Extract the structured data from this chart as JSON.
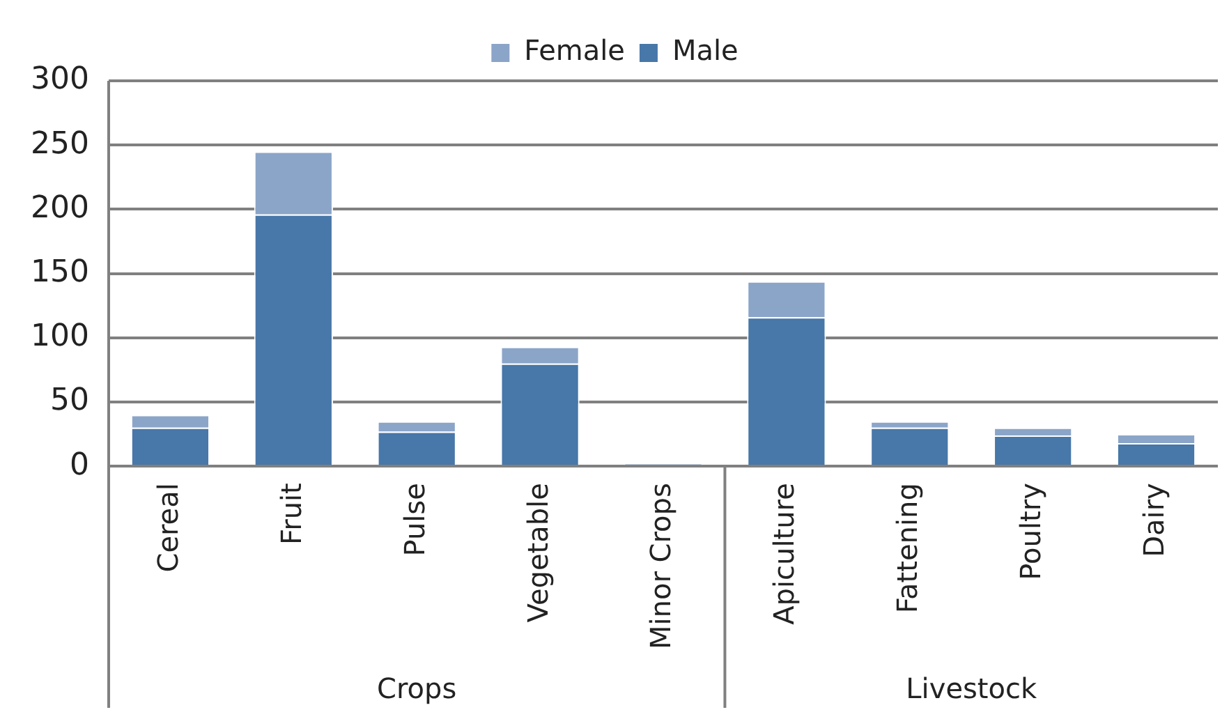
{
  "chart_data": {
    "type": "bar",
    "stacked": true,
    "categories": [
      "Cereal",
      "Fruit",
      "Pulse",
      "Vegetable",
      "Minor Crops",
      "Apiculture",
      "Fattening",
      "Poultry",
      "Dairy"
    ],
    "series": [
      {
        "name": "Male",
        "color": "#4877a9",
        "values": [
          30,
          196,
          27,
          80,
          1,
          116,
          30,
          24,
          18
        ]
      },
      {
        "name": "Female",
        "color": "#8ba5c8",
        "values": [
          10,
          49,
          8,
          13,
          1,
          28,
          5,
          6,
          7
        ]
      }
    ],
    "ylim": [
      0,
      300
    ],
    "yticks": [
      0,
      50,
      100,
      150,
      200,
      250,
      300
    ],
    "grid": "y",
    "legend": "top",
    "annotations": [
      "Crops",
      "Livestock"
    ]
  }
}
